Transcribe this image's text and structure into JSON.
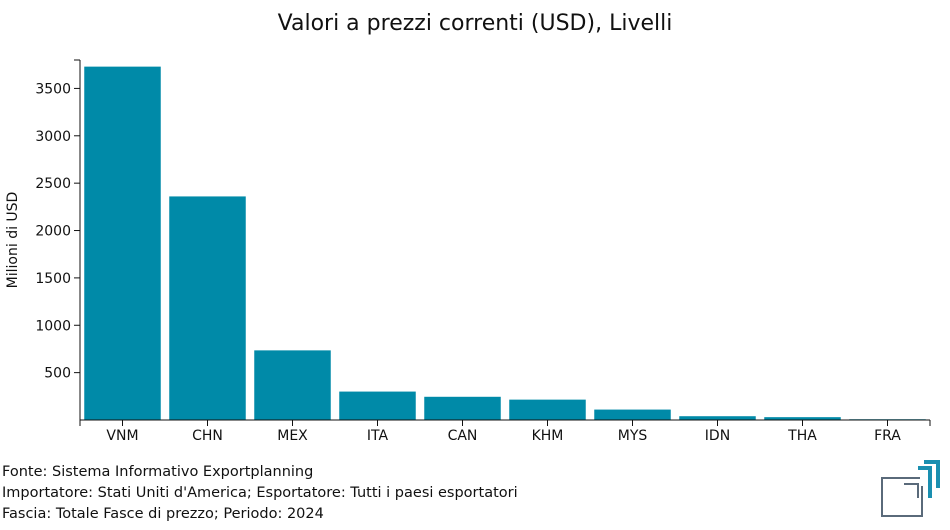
{
  "chart_data": {
    "type": "bar",
    "title": "Valori a prezzi correnti (USD), Livelli",
    "xlabel": "",
    "ylabel": "Milioni di USD",
    "categories": [
      "VNM",
      "CHN",
      "MEX",
      "ITA",
      "CAN",
      "KHM",
      "MYS",
      "IDN",
      "THA",
      "FRA"
    ],
    "values": [
      3730,
      2360,
      735,
      300,
      245,
      215,
      110,
      40,
      30,
      8
    ],
    "yticks": [
      500,
      1000,
      1500,
      2000,
      2500,
      3000,
      3500
    ],
    "ylim": [
      0,
      3800
    ],
    "grid": false,
    "legend": "none",
    "bar_color": "#008aa8"
  },
  "footer": {
    "source": "Fonte: Sistema Informativo Exportplanning",
    "importer": "Importatore: Stati Uniti d'America; Esportatore: Tutti i paesi esportatori",
    "range": "Fascia: Totale Fasce di prezzo; Periodo: 2024"
  },
  "logo": {
    "icon": "exportplanning-logo-icon",
    "colors": [
      "#1a8fb0",
      "#5a6a7a"
    ]
  }
}
